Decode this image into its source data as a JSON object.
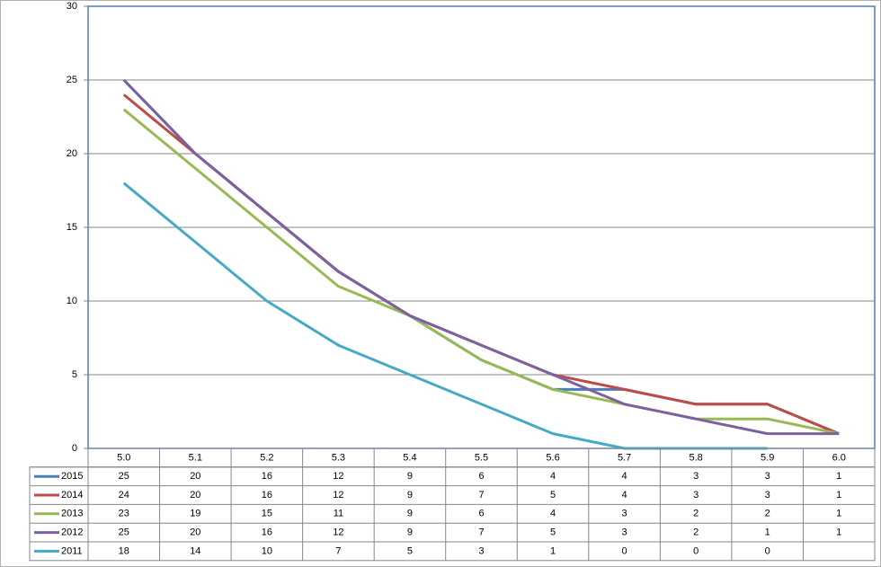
{
  "chart_data": {
    "type": "line",
    "categories": [
      "5.0",
      "5.1",
      "5.2",
      "5.3",
      "5.4",
      "5.5",
      "5.6",
      "5.7",
      "5.8",
      "5.9",
      "6.0"
    ],
    "series": [
      {
        "name": "2015",
        "color": "#4a7ebb",
        "values": [
          25,
          20,
          16,
          12,
          9,
          6,
          4,
          4,
          3,
          3,
          1
        ]
      },
      {
        "name": "2014",
        "color": "#be4b48",
        "values": [
          24,
          20,
          16,
          12,
          9,
          7,
          5,
          4,
          3,
          3,
          1
        ]
      },
      {
        "name": "2013",
        "color": "#98b954",
        "values": [
          23,
          19,
          15,
          11,
          9,
          6,
          4,
          3,
          2,
          2,
          1
        ]
      },
      {
        "name": "2012",
        "color": "#7d60a0",
        "values": [
          25,
          20,
          16,
          12,
          9,
          7,
          5,
          3,
          2,
          1,
          1
        ]
      },
      {
        "name": "2011",
        "color": "#46aac5",
        "values": [
          18,
          14,
          10,
          7,
          5,
          3,
          1,
          0,
          0,
          0,
          null
        ]
      }
    ],
    "ylim": [
      0,
      30
    ],
    "yticks": [
      0,
      5,
      10,
      15,
      20,
      25,
      30
    ],
    "grid": true,
    "data_table": true
  }
}
